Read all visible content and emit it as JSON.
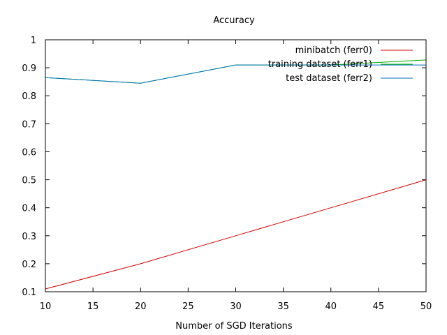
{
  "chart_data": {
    "type": "line",
    "title": "Accuracy",
    "xlabel": "Number of SGD Iterations",
    "ylabel": "",
    "xlim": [
      10,
      50
    ],
    "ylim": [
      0.1,
      1
    ],
    "xticks": [
      "10",
      "15",
      "20",
      "25",
      "30",
      "35",
      "40",
      "45",
      "50"
    ],
    "yticks": [
      "0.1",
      "0.2",
      "0.3",
      "0.4",
      "0.5",
      "0.6",
      "0.7",
      "0.8",
      "0.9",
      "1"
    ],
    "grid": false,
    "legend_position": "top-right",
    "series": [
      {
        "name": "minibatch (ferr0)",
        "color": "#cc0000",
        "x": [
          10,
          20,
          30,
          40,
          50
        ],
        "y": [
          0.11,
          0.2,
          0.3,
          0.4,
          0.5
        ]
      },
      {
        "name": "training dataset (ferr1)",
        "color": "#00aa00",
        "x": [
          10,
          20,
          30,
          40,
          50
        ],
        "y": [
          0.865,
          0.845,
          0.91,
          0.91,
          0.928
        ]
      },
      {
        "name": "test dataset (ferr2)",
        "color": "#0072bd",
        "x": [
          10,
          20,
          30,
          40,
          50
        ],
        "y": [
          0.865,
          0.845,
          0.91,
          0.91,
          0.91
        ]
      }
    ]
  }
}
